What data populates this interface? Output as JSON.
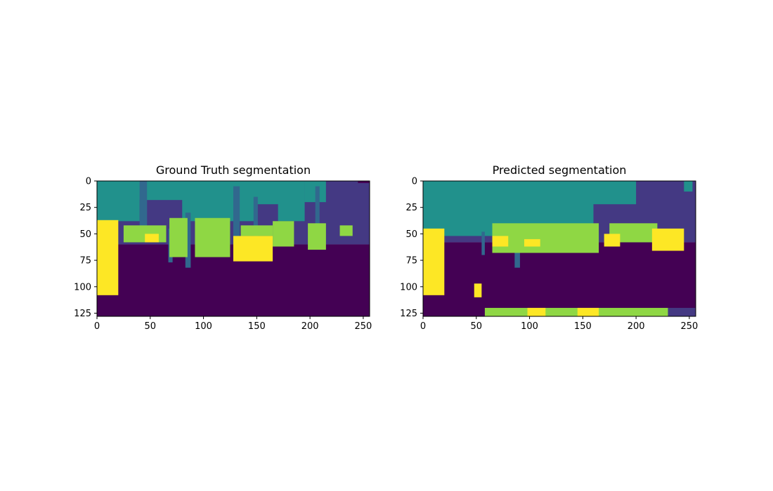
{
  "chart_data": [
    {
      "type": "heatmap",
      "title": "Ground Truth segmentation",
      "xlim": [
        0,
        256
      ],
      "ylim": [
        128,
        0
      ],
      "xticks": [
        0,
        50,
        100,
        150,
        200,
        250
      ],
      "xtick_labels": [
        "0",
        "50",
        "100",
        "150",
        "200",
        "250"
      ],
      "yticks": [
        0,
        25,
        50,
        75,
        100,
        125
      ],
      "ytick_labels": [
        "0",
        "25",
        "50",
        "75",
        "100",
        "125"
      ],
      "colormap": "viridis",
      "class_colors": {
        "road": "#440154",
        "building": "#443983",
        "pole": "#31688e",
        "vegetation": "#21918c",
        "person": "#8fd744",
        "car": "#fde725"
      },
      "regions": [
        {
          "class": "building",
          "x": [
            0,
            256
          ],
          "y": [
            0,
            60
          ]
        },
        {
          "class": "road",
          "x": [
            0,
            256
          ],
          "y": [
            60,
            128
          ]
        },
        {
          "class": "vegetation",
          "x": [
            0,
            195
          ],
          "y": [
            0,
            38
          ]
        },
        {
          "class": "vegetation",
          "x": [
            195,
            215
          ],
          "y": [
            0,
            20
          ]
        },
        {
          "class": "building",
          "x": [
            40,
            80
          ],
          "y": [
            18,
            40
          ]
        },
        {
          "class": "building",
          "x": [
            150,
            170
          ],
          "y": [
            22,
            40
          ]
        },
        {
          "class": "road",
          "x": [
            245,
            256
          ],
          "y": [
            0,
            2
          ]
        },
        {
          "class": "pole",
          "x": [
            40,
            47
          ],
          "y": [
            0,
            50
          ]
        },
        {
          "class": "pole",
          "x": [
            128,
            134
          ],
          "y": [
            5,
            70
          ]
        },
        {
          "class": "pole",
          "x": [
            147,
            151
          ],
          "y": [
            15,
            55
          ]
        },
        {
          "class": "pole",
          "x": [
            83,
            88
          ],
          "y": [
            30,
            82
          ]
        },
        {
          "class": "pole",
          "x": [
            67,
            71
          ],
          "y": [
            45,
            77
          ]
        },
        {
          "class": "pole",
          "x": [
            205,
            209
          ],
          "y": [
            5,
            45
          ]
        },
        {
          "class": "person",
          "x": [
            25,
            65
          ],
          "y": [
            42,
            58
          ]
        },
        {
          "class": "person",
          "x": [
            68,
            85
          ],
          "y": [
            35,
            72
          ]
        },
        {
          "class": "person",
          "x": [
            92,
            125
          ],
          "y": [
            35,
            72
          ]
        },
        {
          "class": "person",
          "x": [
            135,
            165
          ],
          "y": [
            42,
            52
          ]
        },
        {
          "class": "person",
          "x": [
            165,
            185
          ],
          "y": [
            38,
            62
          ]
        },
        {
          "class": "person",
          "x": [
            198,
            215
          ],
          "y": [
            40,
            65
          ]
        },
        {
          "class": "person",
          "x": [
            228,
            240
          ],
          "y": [
            42,
            52
          ]
        },
        {
          "class": "car",
          "x": [
            0,
            20
          ],
          "y": [
            37,
            108
          ]
        },
        {
          "class": "car",
          "x": [
            128,
            165
          ],
          "y": [
            52,
            76
          ]
        },
        {
          "class": "car",
          "x": [
            45,
            58
          ],
          "y": [
            50,
            58
          ]
        }
      ]
    },
    {
      "type": "heatmap",
      "title": "Predicted segmentation",
      "xlim": [
        0,
        256
      ],
      "ylim": [
        128,
        0
      ],
      "xticks": [
        0,
        50,
        100,
        150,
        200,
        250
      ],
      "xtick_labels": [
        "0",
        "50",
        "100",
        "150",
        "200",
        "250"
      ],
      "yticks": [
        0,
        25,
        50,
        75,
        100,
        125
      ],
      "ytick_labels": [
        "0",
        "25",
        "50",
        "75",
        "100",
        "125"
      ],
      "colormap": "viridis",
      "class_colors": {
        "road": "#440154",
        "building": "#443983",
        "pole": "#31688e",
        "vegetation": "#21918c",
        "person": "#8fd744",
        "car": "#fde725"
      },
      "regions": [
        {
          "class": "building",
          "x": [
            0,
            256
          ],
          "y": [
            0,
            58
          ]
        },
        {
          "class": "road",
          "x": [
            0,
            256
          ],
          "y": [
            58,
            128
          ]
        },
        {
          "class": "vegetation",
          "x": [
            0,
            160
          ],
          "y": [
            0,
            52
          ]
        },
        {
          "class": "vegetation",
          "x": [
            160,
            200
          ],
          "y": [
            0,
            22
          ]
        },
        {
          "class": "vegetation",
          "x": [
            245,
            253
          ],
          "y": [
            0,
            10
          ]
        },
        {
          "class": "pole",
          "x": [
            86,
            91
          ],
          "y": [
            45,
            82
          ]
        },
        {
          "class": "pole",
          "x": [
            55,
            58
          ],
          "y": [
            48,
            70
          ]
        },
        {
          "class": "person",
          "x": [
            65,
            165
          ],
          "y": [
            40,
            68
          ]
        },
        {
          "class": "person",
          "x": [
            175,
            220
          ],
          "y": [
            40,
            58
          ]
        },
        {
          "class": "car",
          "x": [
            0,
            20
          ],
          "y": [
            45,
            108
          ]
        },
        {
          "class": "car",
          "x": [
            215,
            245
          ],
          "y": [
            45,
            66
          ]
        },
        {
          "class": "car",
          "x": [
            65,
            80
          ],
          "y": [
            52,
            62
          ]
        },
        {
          "class": "car",
          "x": [
            95,
            110
          ],
          "y": [
            55,
            62
          ]
        },
        {
          "class": "car",
          "x": [
            170,
            185
          ],
          "y": [
            50,
            62
          ]
        },
        {
          "class": "car",
          "x": [
            48,
            55
          ],
          "y": [
            97,
            110
          ]
        },
        {
          "class": "person",
          "x": [
            58,
            230
          ],
          "y": [
            120,
            128
          ]
        },
        {
          "class": "car",
          "x": [
            98,
            115
          ],
          "y": [
            120,
            128
          ]
        },
        {
          "class": "car",
          "x": [
            145,
            165
          ],
          "y": [
            120,
            128
          ]
        },
        {
          "class": "building",
          "x": [
            230,
            256
          ],
          "y": [
            120,
            128
          ]
        }
      ]
    }
  ]
}
